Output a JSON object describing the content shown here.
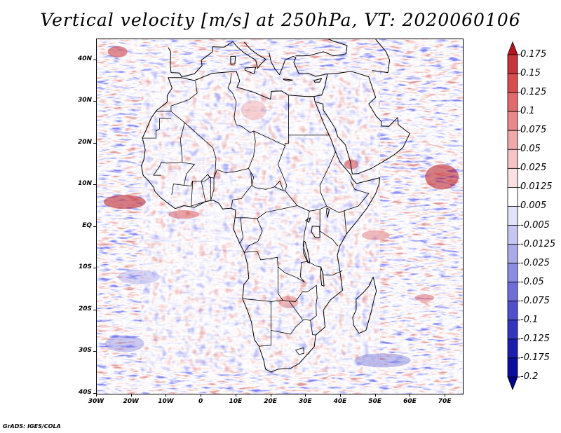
{
  "title": "Vertical velocity [m/s] at 250hPa, VT: 2020060106",
  "footer": "GrADS: IGES/COLA",
  "map": {
    "lat_labels": [
      "40N",
      "30N",
      "20N",
      "10N",
      "EQ",
      "10S",
      "20S",
      "30S",
      "40S"
    ],
    "lon_labels": [
      "30W",
      "20W",
      "10W",
      "0",
      "10E",
      "20E",
      "30E",
      "40E",
      "50E",
      "60E",
      "70E"
    ]
  },
  "colorbar": {
    "labels": [
      "0.175",
      "0.15",
      "0.125",
      "0.1",
      "0.075",
      "0.05",
      "0.025",
      "0.0125",
      "0.005",
      "-0.005",
      "-0.0125",
      "-0.025",
      "-0.05",
      "-0.075",
      "-0.1",
      "-0.125",
      "-0.175",
      "-0.2"
    ],
    "colors": [
      "#b4141e",
      "#c8323a",
      "#d84c50",
      "#e06a6c",
      "#e8888a",
      "#f0a8aa",
      "#f6c4c6",
      "#fbe0e2",
      "#ffffff",
      "#e2e2fa",
      "#c6c6f2",
      "#aaaaea",
      "#8c8ce2",
      "#6e6ed8",
      "#5050cc",
      "#3434be",
      "#1c1cae",
      "#0c0ca0",
      "#00008c"
    ]
  }
}
